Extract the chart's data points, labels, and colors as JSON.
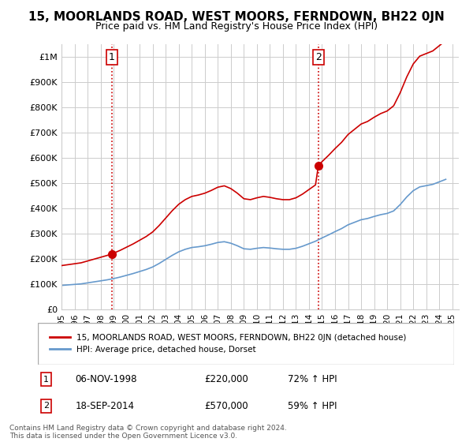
{
  "title": "15, MOORLANDS ROAD, WEST MOORS, FERNDOWN, BH22 0JN",
  "subtitle": "Price paid vs. HM Land Registry's House Price Index (HPI)",
  "title_fontsize": 11,
  "subtitle_fontsize": 9,
  "ylim": [
    0,
    1050000
  ],
  "yticks": [
    0,
    100000,
    200000,
    300000,
    400000,
    500000,
    600000,
    700000,
    800000,
    900000,
    1000000
  ],
  "ytick_labels": [
    "£0",
    "£100K",
    "£200K",
    "£300K",
    "£400K",
    "£500K",
    "£600K",
    "£700K",
    "£800K",
    "£900K",
    "£1M"
  ],
  "red_line_label": "15, MOORLANDS ROAD, WEST MOORS, FERNDOWN, BH22 0JN (detached house)",
  "blue_line_label": "HPI: Average price, detached house, Dorset",
  "sale1_label": "1",
  "sale1_date": "06-NOV-1998",
  "sale1_price": "£220,000",
  "sale1_hpi": "72% ↑ HPI",
  "sale1_year": 1998.85,
  "sale1_value": 220000,
  "sale2_label": "2",
  "sale2_date": "18-SEP-2014",
  "sale2_price": "£570,000",
  "sale2_hpi": "59% ↑ HPI",
  "sale2_year": 2014.72,
  "sale2_value": 570000,
  "red_color": "#cc0000",
  "blue_color": "#6699cc",
  "dot_color": "#cc0000",
  "vline_color": "#cc0000",
  "grid_color": "#cccccc",
  "bg_color": "#ffffff",
  "footnote": "Contains HM Land Registry data © Crown copyright and database right 2024.\nThis data is licensed under the Open Government Licence v3.0.",
  "xmin": 1995,
  "xmax": 2025.5
}
